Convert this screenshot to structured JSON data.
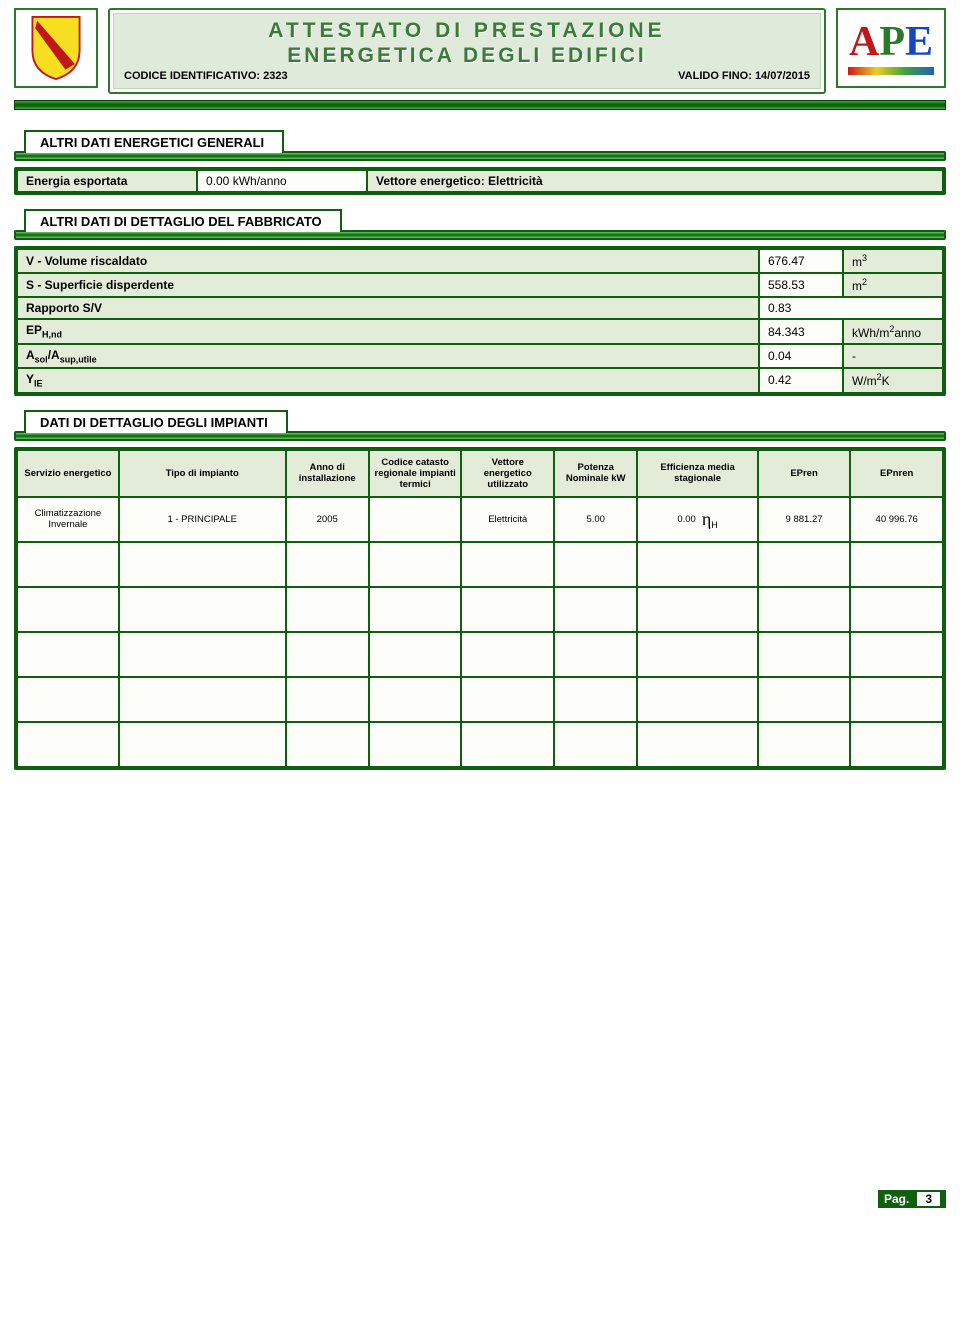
{
  "header": {
    "title_line1": "ATTESTATO DI PRESTAZIONE",
    "title_line2": "ENERGETICA DEGLI EDIFICI",
    "codice_label": "CODICE IDENTIFICATIVO:",
    "codice_value": "2323",
    "valido_label": "VALIDO FINO:",
    "valido_value": "14/07/2015",
    "ape_letters": {
      "a": "A",
      "p": "P",
      "e": "E"
    }
  },
  "sec_general": {
    "title": "ALTRI DATI ENERGETICI GENERALI",
    "row": {
      "label": "Energia esportata",
      "value": "0.00 kWh/anno",
      "vec_label": "Vettore energetico: Elettricità"
    }
  },
  "sec_fabbricato": {
    "title": "ALTRI DATI DI DETTAGLIO DEL FABBRICATO",
    "rows": [
      {
        "label": "V - Volume riscaldato",
        "value": "676.47",
        "unit": "m³"
      },
      {
        "label": "S - Superficie disperdente",
        "value": "558.53",
        "unit": "m²"
      },
      {
        "label": "Rapporto S/V",
        "value": "0.83",
        "unit": ""
      },
      {
        "label_html": "EP",
        "sub": "H,nd",
        "value": "84.343",
        "unit": "kWh/m²anno"
      },
      {
        "label_html": "A",
        "sub": "sol",
        "label2": "/A",
        "sub2": "sup,utile",
        "value": "0.04",
        "unit": "-"
      },
      {
        "label_html": "Y",
        "sub": "IE",
        "value": "0.42",
        "unit": "W/m²K"
      }
    ]
  },
  "sec_impianti": {
    "title": "DATI DI DETTAGLIO DEGLI IMPIANTI",
    "headers": [
      "Servizio energetico",
      "Tipo di impianto",
      "Anno di installazione",
      "Codice catasto regionale impianti termici",
      "Vettore energetico utilizzato",
      "Potenza Nominale kW",
      "Efficienza media stagionale",
      "EPren",
      "EPnren"
    ],
    "rows": [
      {
        "servizio": "Climatizzazione Invernale",
        "tipo": "1 - PRINCIPALE",
        "anno": "2005",
        "codice": "",
        "vettore": "Elettricità",
        "potenza": "5.00",
        "eff_val": "0.00",
        "eff_sym": "η",
        "eff_sub": "H",
        "epren": "9 881.27",
        "epnren": "40 996.76"
      }
    ],
    "empty_rows": 5
  },
  "footer": {
    "pag_label": "Pag.",
    "pag_num": "3"
  },
  "colors": {
    "green_dark": "#0f5f0f",
    "green_pale": "#e3ecd8",
    "row_bg": "#fdfdfa"
  }
}
